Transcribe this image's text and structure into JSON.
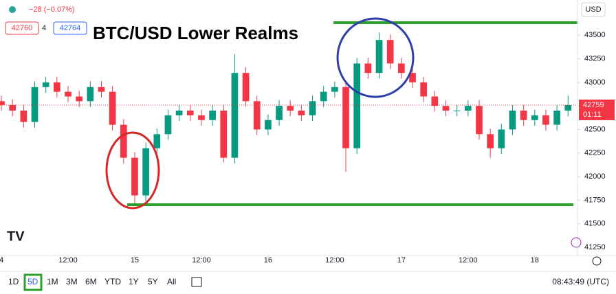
{
  "chart_data": {
    "type": "candlestick",
    "title": "BTC/USD Lower Realms",
    "header": {
      "change": "−28 (−0.07%)",
      "bid": "42760",
      "spread": "4",
      "ask": "42764"
    },
    "currency": "USD",
    "last_price": 42759,
    "countdown": "01:11",
    "up_color": "#089981",
    "down_color": "#f23645",
    "x": [
      0,
      2,
      4,
      6,
      8,
      10,
      12,
      14,
      16,
      18,
      20,
      22,
      24,
      26,
      28,
      30,
      32,
      34,
      36,
      38,
      40,
      42,
      44,
      46,
      48,
      50,
      52,
      54,
      56,
      58,
      60,
      62,
      64,
      66,
      68,
      70,
      72,
      74,
      76,
      78,
      80,
      82,
      84,
      86,
      88,
      90,
      92,
      94,
      96,
      98,
      100,
      102
    ],
    "open": [
      42800,
      42760,
      42700,
      42580,
      42950,
      43000,
      42900,
      42850,
      42800,
      42950,
      42900,
      42550,
      42200,
      41800,
      42300,
      42450,
      42650,
      42700,
      42650,
      42600,
      42700,
      42200,
      43100,
      42800,
      42500,
      42600,
      42750,
      42700,
      42650,
      42800,
      42900,
      42950,
      42300,
      43200,
      43100,
      43450,
      43200,
      43100,
      43000,
      42850,
      42750,
      42700,
      42700,
      42750,
      42450,
      42300,
      42500,
      42700,
      42600,
      42650,
      42550,
      42700
    ],
    "high": [
      42860,
      42820,
      42760,
      43010,
      43060,
      43060,
      42960,
      42910,
      43010,
      43010,
      42960,
      42610,
      42260,
      42360,
      42510,
      42710,
      42760,
      42760,
      42710,
      42760,
      42760,
      43300,
      43160,
      42860,
      42660,
      42810,
      42810,
      42760,
      42860,
      42960,
      43010,
      43010,
      43260,
      43260,
      43530,
      43510,
      43260,
      43160,
      43060,
      42910,
      42810,
      42760,
      42810,
      42810,
      42510,
      42560,
      42760,
      42760,
      42710,
      42710,
      42760,
      42860
    ],
    "low": [
      42700,
      42640,
      42520,
      42520,
      42890,
      42840,
      42790,
      42740,
      42740,
      42840,
      42490,
      42140,
      41700,
      41740,
      42240,
      42390,
      42590,
      42590,
      42540,
      42540,
      42150,
      42140,
      42740,
      42440,
      42440,
      42540,
      42640,
      42590,
      42590,
      42740,
      42840,
      42050,
      42240,
      43040,
      43040,
      43140,
      43040,
      42940,
      42790,
      42690,
      42640,
      42640,
      42640,
      42390,
      42200,
      42240,
      42440,
      42540,
      42540,
      42490,
      42490,
      42640
    ],
    "close": [
      42760,
      42700,
      42580,
      42950,
      43000,
      42900,
      42850,
      42800,
      42950,
      42900,
      42550,
      42200,
      41800,
      42300,
      42450,
      42650,
      42700,
      42650,
      42600,
      42700,
      42200,
      43100,
      42800,
      42500,
      42600,
      42750,
      42700,
      42650,
      42800,
      42900,
      42950,
      42300,
      43200,
      43100,
      43450,
      43200,
      43100,
      43000,
      42850,
      42750,
      42700,
      42700,
      42750,
      42450,
      42300,
      42500,
      42700,
      42600,
      42650,
      42550,
      42700,
      42759
    ],
    "xlim": [
      -0.25,
      103.7
    ],
    "xticks": [
      {
        "value": 0,
        "label": "4"
      },
      {
        "value": 12,
        "label": "12:00"
      },
      {
        "value": 24,
        "label": "15"
      },
      {
        "value": 36,
        "label": "12:00"
      },
      {
        "value": 48,
        "label": "16"
      },
      {
        "value": 60,
        "label": "12:00"
      },
      {
        "value": 72,
        "label": "17"
      },
      {
        "value": 84,
        "label": "12:00"
      },
      {
        "value": 96,
        "label": "18"
      }
    ],
    "ylim": [
      41162,
      43874
    ],
    "yticks": [
      41250,
      41500,
      41750,
      42000,
      42250,
      42500,
      42750,
      43000,
      43250,
      43500
    ],
    "grid": false
  },
  "toolbar": {
    "ranges": [
      "1D",
      "5D",
      "1M",
      "3M",
      "6M",
      "YTD",
      "1Y",
      "5Y",
      "All"
    ],
    "selected_index": 1,
    "clock": "08:43:49 (UTC)"
  }
}
